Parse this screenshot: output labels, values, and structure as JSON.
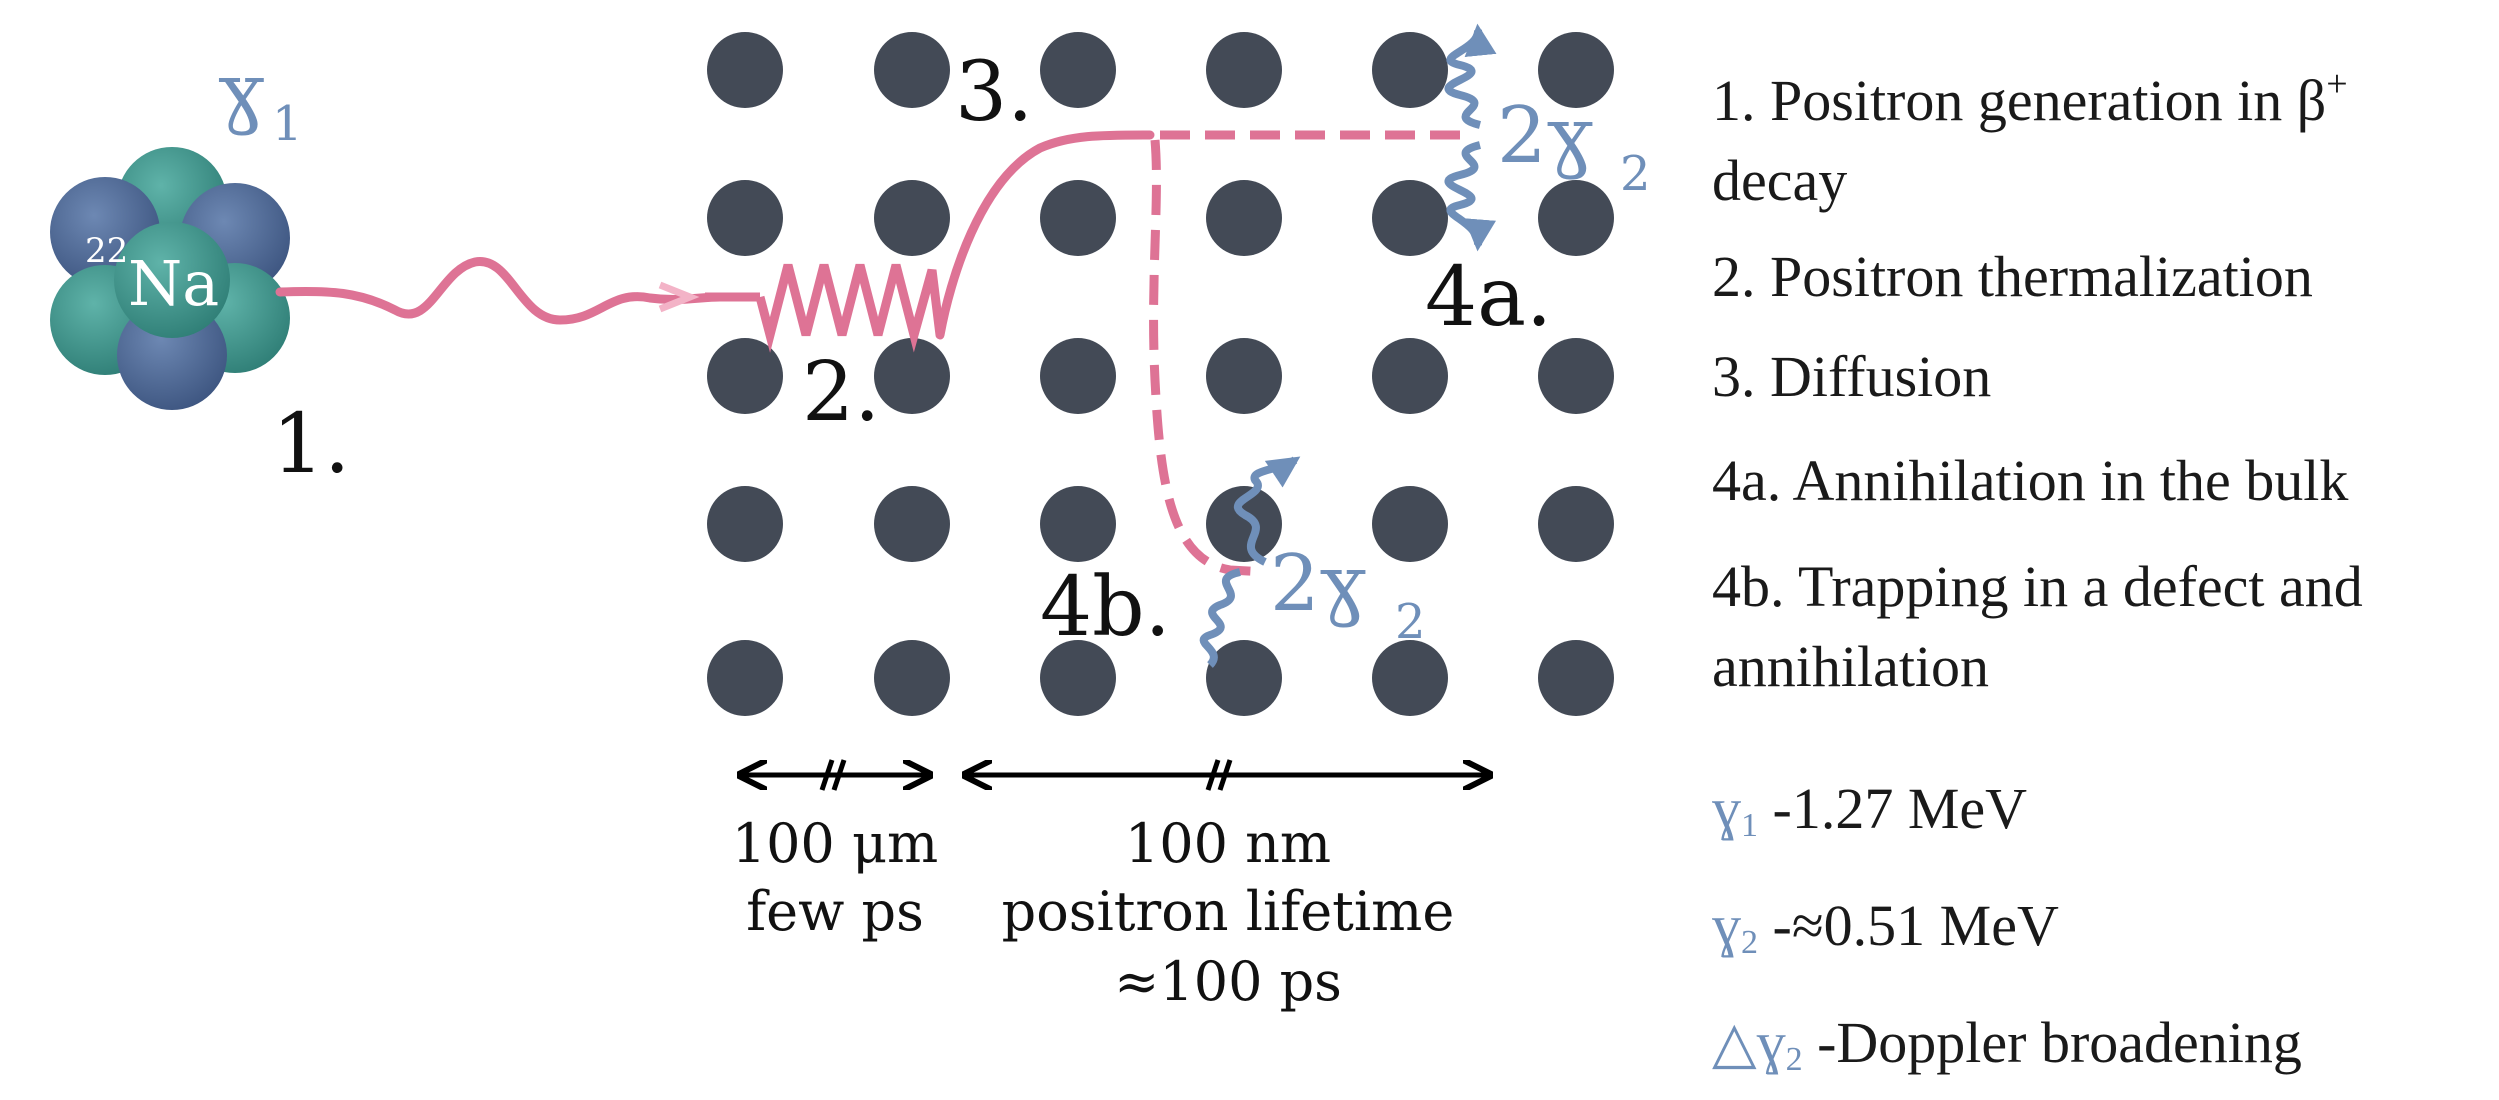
{
  "colors": {
    "atom": "#434a56",
    "positron_path": "#de7395",
    "gamma": "#6f8fb9",
    "nucleus_teal": "#3f9289",
    "nucleus_blue": "#4f6a96",
    "text": "#1a1a1a"
  },
  "source": {
    "nucleus_label": "Na",
    "mass_number": "22",
    "gamma1_label": "ɣ",
    "gamma1_sub": "1",
    "step1_label": "1."
  },
  "lattice": {
    "step2_label": "2.",
    "step3_label": "3.",
    "step4a_label": "4a.",
    "step4b_label": "4b.",
    "gamma2_prefix": "2ɣ",
    "gamma2_sub": "2"
  },
  "scales": {
    "short_line1": "100 μm",
    "short_line2": "few ps",
    "long_line1": "100 nm",
    "long_line2": "positron lifetime",
    "long_line3": "≈100 ps"
  },
  "legend": {
    "step1_main": "1. Positron generation in β",
    "step1_sup": "+",
    "step1_cont": "decay",
    "step2": "2. Positron   thermalization",
    "step3": "3. Diffusion",
    "step4a": "4a.  Annihilation in the bulk",
    "step4b_line1": "4b. Trapping in a defect and",
    "step4b_line2": "annihilation",
    "g1_sym": "ɣ",
    "g1_sub": "1",
    "g1_text": " -1.27 MeV",
    "g2_sym": "ɣ",
    "g2_sub": "2",
    "g2_text": " -≈0.51 MeV",
    "delta_sym": "△",
    "dg_sym": "ɣ",
    "dg_sub": "2",
    "dg_text": " -Doppler broadening"
  }
}
